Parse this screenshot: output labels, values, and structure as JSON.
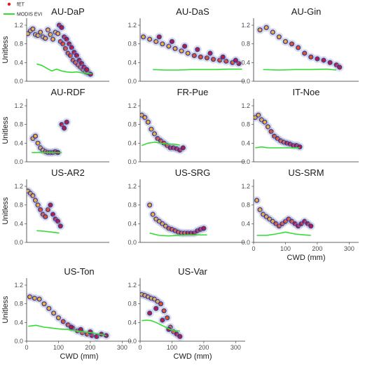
{
  "legend": {
    "items": [
      {
        "label": "fET",
        "color": "#e31a1c",
        "kind": "point"
      },
      {
        "label": "MODIS EVI",
        "color": "#33dd33",
        "kind": "line"
      }
    ]
  },
  "axes": {
    "y_label": "Unitless",
    "x_label": "CWD (mm)",
    "y_ticks": [
      "0.0",
      "0.4",
      "0.8",
      "1.2"
    ],
    "x_ticks": [
      "0",
      "100",
      "200",
      "300"
    ]
  },
  "chart_data": [
    {
      "type": "scatter",
      "title": "AU-DaP",
      "xlim": [
        0,
        330
      ],
      "ylim": [
        0,
        1.35
      ],
      "show_ylabel": true,
      "show_xlabel": false,
      "show_xticks": false,
      "fet_points": [
        [
          5,
          1.02
        ],
        [
          15,
          1.08
        ],
        [
          25,
          1.12
        ],
        [
          35,
          1.0
        ],
        [
          45,
          0.98
        ],
        [
          55,
          1.05
        ],
        [
          65,
          0.95
        ],
        [
          75,
          0.92
        ],
        [
          85,
          1.1
        ],
        [
          95,
          1.0
        ],
        [
          105,
          0.9
        ],
        [
          115,
          1.05
        ],
        [
          125,
          1.02
        ],
        [
          135,
          0.85
        ],
        [
          145,
          0.8
        ],
        [
          155,
          0.7
        ],
        [
          165,
          0.6
        ],
        [
          175,
          0.55
        ],
        [
          185,
          0.45
        ],
        [
          195,
          0.4
        ],
        [
          205,
          0.35
        ],
        [
          215,
          0.3
        ],
        [
          225,
          0.25
        ],
        [
          235,
          0.2
        ],
        [
          245,
          0.18
        ],
        [
          255,
          0.15
        ],
        [
          130,
          1.2
        ],
        [
          140,
          1.15
        ],
        [
          150,
          0.95
        ],
        [
          160,
          0.9
        ],
        [
          170,
          0.8
        ],
        [
          180,
          0.72
        ],
        [
          190,
          0.62
        ],
        [
          200,
          0.55
        ],
        [
          210,
          0.45
        ],
        [
          220,
          0.38
        ],
        [
          230,
          0.3
        ],
        [
          240,
          0.25
        ]
      ],
      "evi_line": [
        [
          40,
          0.37
        ],
        [
          60,
          0.34
        ],
        [
          80,
          0.28
        ],
        [
          100,
          0.22
        ],
        [
          120,
          0.26
        ],
        [
          140,
          0.22
        ],
        [
          160,
          0.2
        ],
        [
          180,
          0.19
        ],
        [
          200,
          0.2
        ],
        [
          220,
          0.18
        ],
        [
          240,
          0.17
        ],
        [
          260,
          0.16
        ]
      ]
    },
    {
      "type": "scatter",
      "title": "AU-DaS",
      "xlim": [
        0,
        330
      ],
      "ylim": [
        0,
        1.35
      ],
      "show_ylabel": false,
      "show_xlabel": false,
      "show_xticks": false,
      "fet_points": [
        [
          10,
          0.95
        ],
        [
          30,
          0.9
        ],
        [
          50,
          0.85
        ],
        [
          70,
          0.8
        ],
        [
          90,
          0.75
        ],
        [
          110,
          0.7
        ],
        [
          130,
          0.65
        ],
        [
          150,
          0.6
        ],
        [
          170,
          0.55
        ],
        [
          190,
          0.52
        ],
        [
          210,
          0.5
        ],
        [
          230,
          0.47
        ],
        [
          250,
          0.45
        ],
        [
          270,
          0.43
        ],
        [
          290,
          0.4
        ],
        [
          310,
          0.38
        ],
        [
          60,
          0.95
        ],
        [
          100,
          0.85
        ],
        [
          140,
          0.75
        ],
        [
          180,
          0.68
        ],
        [
          220,
          0.6
        ],
        [
          260,
          0.52
        ],
        [
          300,
          0.45
        ]
      ],
      "evi_line": [
        [
          40,
          0.25
        ],
        [
          80,
          0.24
        ],
        [
          120,
          0.24
        ],
        [
          160,
          0.25
        ],
        [
          200,
          0.25
        ],
        [
          240,
          0.25
        ],
        [
          280,
          0.26
        ],
        [
          320,
          0.26
        ]
      ]
    },
    {
      "type": "scatter",
      "title": "AU-Gin",
      "xlim": [
        0,
        330
      ],
      "ylim": [
        0,
        1.35
      ],
      "show_ylabel": false,
      "show_xlabel": false,
      "show_xticks": false,
      "fet_points": [
        [
          20,
          1.1
        ],
        [
          40,
          1.15
        ],
        [
          60,
          1.05
        ],
        [
          80,
          0.95
        ],
        [
          100,
          0.85
        ],
        [
          120,
          0.8
        ],
        [
          140,
          0.72
        ],
        [
          160,
          0.6
        ],
        [
          180,
          0.52
        ],
        [
          200,
          0.48
        ],
        [
          220,
          0.45
        ],
        [
          240,
          0.4
        ],
        [
          260,
          0.35
        ],
        [
          270,
          0.3
        ]
      ],
      "evi_line": [
        [
          30,
          0.25
        ],
        [
          80,
          0.24
        ],
        [
          130,
          0.25
        ],
        [
          180,
          0.25
        ],
        [
          230,
          0.26
        ],
        [
          260,
          0.24
        ]
      ]
    },
    {
      "type": "scatter",
      "title": "AU-RDF",
      "xlim": [
        0,
        330
      ],
      "ylim": [
        0,
        1.35
      ],
      "show_ylabel": true,
      "show_xlabel": false,
      "show_xticks": false,
      "fet_points": [
        [
          25,
          0.5
        ],
        [
          35,
          0.55
        ],
        [
          45,
          0.4
        ],
        [
          55,
          0.3
        ],
        [
          65,
          0.25
        ],
        [
          75,
          0.22
        ],
        [
          85,
          0.2
        ],
        [
          95,
          0.2
        ],
        [
          105,
          0.2
        ],
        [
          115,
          0.22
        ],
        [
          125,
          0.2
        ],
        [
          140,
          0.8
        ],
        [
          150,
          0.72
        ],
        [
          160,
          0.85
        ]
      ],
      "evi_line": [
        [
          20,
          0.2
        ],
        [
          50,
          0.2
        ],
        [
          80,
          0.2
        ],
        [
          110,
          0.2
        ],
        [
          140,
          0.2
        ]
      ]
    },
    {
      "type": "scatter",
      "title": "FR-Pue",
      "xlim": [
        0,
        330
      ],
      "ylim": [
        0,
        1.35
      ],
      "show_ylabel": false,
      "show_xlabel": false,
      "show_xticks": false,
      "fet_points": [
        [
          5,
          1.0
        ],
        [
          15,
          0.95
        ],
        [
          25,
          0.85
        ],
        [
          35,
          0.7
        ],
        [
          45,
          0.6
        ],
        [
          55,
          0.5
        ],
        [
          65,
          0.45
        ],
        [
          75,
          0.4
        ],
        [
          85,
          0.35
        ],
        [
          95,
          0.3
        ],
        [
          105,
          0.3
        ],
        [
          115,
          0.28
        ],
        [
          125,
          0.25
        ],
        [
          135,
          0.3
        ]
      ],
      "evi_line": [
        [
          5,
          0.35
        ],
        [
          25,
          0.4
        ],
        [
          45,
          0.42
        ],
        [
          65,
          0.4
        ],
        [
          85,
          0.38
        ],
        [
          105,
          0.38
        ],
        [
          125,
          0.36
        ]
      ]
    },
    {
      "type": "scatter",
      "title": "IT-Noe",
      "xlim": [
        0,
        330
      ],
      "ylim": [
        0,
        1.35
      ],
      "show_ylabel": false,
      "show_xlabel": false,
      "show_xticks": false,
      "fet_points": [
        [
          5,
          0.95
        ],
        [
          15,
          1.0
        ],
        [
          25,
          0.9
        ],
        [
          35,
          0.85
        ],
        [
          45,
          0.75
        ],
        [
          55,
          0.65
        ],
        [
          65,
          0.55
        ],
        [
          75,
          0.5
        ],
        [
          85,
          0.45
        ],
        [
          95,
          0.42
        ],
        [
          105,
          0.4
        ],
        [
          115,
          0.38
        ],
        [
          125,
          0.35
        ],
        [
          135,
          0.35
        ],
        [
          145,
          0.32
        ]
      ],
      "evi_line": [
        [
          5,
          0.3
        ],
        [
          25,
          0.32
        ],
        [
          45,
          0.3
        ],
        [
          65,
          0.3
        ],
        [
          85,
          0.3
        ],
        [
          105,
          0.3
        ],
        [
          125,
          0.3
        ],
        [
          145,
          0.3
        ]
      ]
    },
    {
      "type": "scatter",
      "title": "US-AR2",
      "xlim": [
        0,
        330
      ],
      "ylim": [
        0,
        1.35
      ],
      "show_ylabel": true,
      "show_xlabel": false,
      "show_xticks": false,
      "fet_points": [
        [
          5,
          1.1
        ],
        [
          15,
          1.05
        ],
        [
          25,
          1.0
        ],
        [
          35,
          0.9
        ],
        [
          45,
          0.8
        ],
        [
          55,
          0.7
        ],
        [
          65,
          0.6
        ],
        [
          75,
          0.55
        ],
        [
          85,
          0.7
        ],
        [
          95,
          0.8
        ],
        [
          105,
          0.6
        ],
        [
          115,
          0.5
        ],
        [
          125,
          0.45
        ],
        [
          135,
          0.35
        ]
      ],
      "evi_line": [
        [
          40,
          0.25
        ],
        [
          70,
          0.24
        ],
        [
          100,
          0.22
        ],
        [
          130,
          0.2
        ]
      ]
    },
    {
      "type": "scatter",
      "title": "US-SRG",
      "xlim": [
        0,
        330
      ],
      "ylim": [
        0,
        1.35
      ],
      "show_ylabel": false,
      "show_xlabel": false,
      "show_xticks": false,
      "fet_points": [
        [
          30,
          0.8
        ],
        [
          40,
          0.6
        ],
        [
          50,
          0.5
        ],
        [
          60,
          0.45
        ],
        [
          70,
          0.4
        ],
        [
          80,
          0.35
        ],
        [
          90,
          0.3
        ],
        [
          100,
          0.28
        ],
        [
          110,
          0.25
        ],
        [
          120,
          0.22
        ],
        [
          130,
          0.2
        ],
        [
          140,
          0.2
        ],
        [
          150,
          0.2
        ],
        [
          160,
          0.2
        ],
        [
          170,
          0.2
        ],
        [
          180,
          0.25
        ],
        [
          190,
          0.28
        ],
        [
          200,
          0.3
        ]
      ],
      "evi_line": [
        [
          30,
          0.2
        ],
        [
          60,
          0.15
        ],
        [
          90,
          0.14
        ],
        [
          120,
          0.15
        ],
        [
          150,
          0.16
        ],
        [
          180,
          0.16
        ],
        [
          210,
          0.16
        ]
      ]
    },
    {
      "type": "scatter",
      "title": "US-SRM",
      "xlim": [
        0,
        330
      ],
      "ylim": [
        0,
        1.35
      ],
      "show_ylabel": false,
      "show_xlabel": true,
      "show_xticks": true,
      "fet_points": [
        [
          10,
          0.9
        ],
        [
          20,
          0.7
        ],
        [
          30,
          0.6
        ],
        [
          40,
          0.55
        ],
        [
          50,
          0.5
        ],
        [
          60,
          0.45
        ],
        [
          70,
          0.4
        ],
        [
          80,
          0.35
        ],
        [
          90,
          0.4
        ],
        [
          100,
          0.45
        ],
        [
          110,
          0.5
        ],
        [
          120,
          0.45
        ],
        [
          130,
          0.4
        ],
        [
          140,
          0.35
        ],
        [
          150,
          0.4
        ],
        [
          160,
          0.45
        ],
        [
          170,
          0.4
        ],
        [
          180,
          0.35
        ]
      ],
      "evi_line": [
        [
          10,
          0.15
        ],
        [
          40,
          0.15
        ],
        [
          70,
          0.18
        ],
        [
          100,
          0.22
        ],
        [
          130,
          0.18
        ],
        [
          160,
          0.16
        ],
        [
          180,
          0.15
        ]
      ]
    },
    {
      "type": "scatter",
      "title": "US-Ton",
      "xlim": [
        0,
        330
      ],
      "ylim": [
        0,
        1.35
      ],
      "show_ylabel": true,
      "show_xlabel": true,
      "show_xticks": true,
      "fet_points": [
        [
          10,
          0.95
        ],
        [
          25,
          0.92
        ],
        [
          40,
          0.9
        ],
        [
          55,
          0.8
        ],
        [
          70,
          0.7
        ],
        [
          85,
          0.6
        ],
        [
          100,
          0.5
        ],
        [
          115,
          0.42
        ],
        [
          130,
          0.35
        ],
        [
          145,
          0.28
        ],
        [
          160,
          0.22
        ],
        [
          175,
          0.18
        ],
        [
          190,
          0.15
        ],
        [
          205,
          0.12
        ],
        [
          220,
          0.1
        ],
        [
          235,
          0.15
        ],
        [
          250,
          0.12
        ],
        [
          140,
          0.3
        ],
        [
          170,
          0.25
        ],
        [
          200,
          0.2
        ]
      ],
      "evi_line": [
        [
          5,
          0.32
        ],
        [
          30,
          0.34
        ],
        [
          55,
          0.3
        ],
        [
          80,
          0.28
        ],
        [
          105,
          0.26
        ],
        [
          130,
          0.25
        ],
        [
          155,
          0.22
        ],
        [
          180,
          0.2
        ],
        [
          205,
          0.18
        ],
        [
          230,
          0.15
        ],
        [
          250,
          0.12
        ]
      ]
    },
    {
      "type": "scatter",
      "title": "US-Var",
      "xlim": [
        0,
        330
      ],
      "ylim": [
        0,
        1.35
      ],
      "show_ylabel": false,
      "show_xlabel": true,
      "show_xticks": true,
      "fet_points": [
        [
          5,
          1.0
        ],
        [
          15,
          0.98
        ],
        [
          25,
          0.95
        ],
        [
          35,
          0.92
        ],
        [
          45,
          0.9
        ],
        [
          55,
          0.85
        ],
        [
          65,
          0.8
        ],
        [
          75,
          0.65
        ],
        [
          85,
          0.5
        ],
        [
          95,
          0.3
        ],
        [
          105,
          0.2
        ],
        [
          115,
          0.15
        ],
        [
          125,
          0.1
        ],
        [
          30,
          0.6
        ],
        [
          50,
          0.7
        ],
        [
          70,
          0.45
        ],
        [
          90,
          0.25
        ]
      ],
      "evi_line": [
        [
          5,
          0.44
        ],
        [
          20,
          0.45
        ],
        [
          35,
          0.44
        ],
        [
          50,
          0.4
        ],
        [
          65,
          0.35
        ],
        [
          80,
          0.3
        ],
        [
          95,
          0.25
        ],
        [
          110,
          0.22
        ],
        [
          125,
          0.22
        ]
      ]
    }
  ]
}
